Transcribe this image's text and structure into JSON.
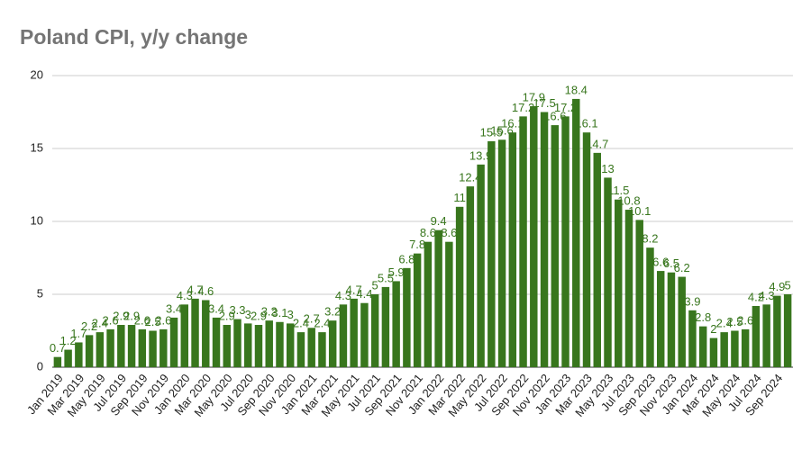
{
  "chart_data": {
    "type": "bar",
    "title": "Poland CPI, y/y change",
    "categories": [
      "Jan 2019",
      null,
      "Mar 2019",
      null,
      "May 2019",
      null,
      "Jul 2019",
      null,
      "Sep 2019",
      null,
      "Nov 2019",
      null,
      "Jan 2020",
      null,
      "Mar 2020",
      null,
      "May 2020",
      null,
      "Jul 2020",
      null,
      "Sep 2020",
      null,
      "Nov 2020",
      null,
      "Jan 2021",
      null,
      "Mar 2021",
      null,
      "May 2021",
      null,
      "Jul 2021",
      null,
      "Sep 2021",
      null,
      "Nov 2021",
      null,
      "Jan 2022",
      null,
      "Mar 2022",
      null,
      "May 2022",
      null,
      "Jul 2022",
      null,
      "Sep 2022",
      null,
      "Nov 2022",
      null,
      "Jan 2023",
      null,
      "Mar 2023",
      null,
      "May 2023",
      null,
      "Jul 2023",
      null,
      "Sep 2023",
      null,
      "Nov 2023",
      null,
      "Jan 2024",
      null,
      "Mar 2024",
      null,
      "May 2024",
      null,
      "Jul 2024",
      null,
      "Sep 2024",
      null
    ],
    "values": [
      0.7,
      1.2,
      1.7,
      2.2,
      2.4,
      2.6,
      2.9,
      2.9,
      2.6,
      2.5,
      2.6,
      3.4,
      4.3,
      4.7,
      4.6,
      3.4,
      2.9,
      3.3,
      3,
      2.9,
      3.2,
      3.1,
      3,
      2.4,
      2.7,
      2.4,
      3.2,
      4.3,
      4.7,
      4.4,
      5,
      5.5,
      5.9,
      6.8,
      7.8,
      8.6,
      9.4,
      8.6,
      11,
      12.4,
      13.9,
      15.5,
      15.6,
      16.1,
      17.2,
      17.9,
      17.5,
      16.6,
      17.2,
      18.4,
      16.1,
      14.7,
      13,
      11.5,
      10.8,
      10.1,
      8.2,
      6.6,
      6.5,
      6.2,
      3.9,
      2.8,
      2,
      2.4,
      2.5,
      2.6,
      4.2,
      4.3,
      4.9,
      5
    ],
    "color": "#38761d",
    "ylim": [
      0,
      20
    ],
    "yticks": [
      0,
      5,
      10,
      15,
      20
    ],
    "grid": true
  }
}
